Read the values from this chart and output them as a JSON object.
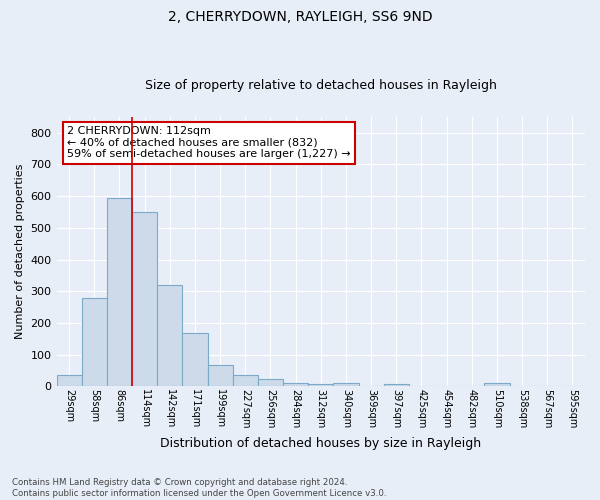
{
  "title1": "2, CHERRYDOWN, RAYLEIGH, SS6 9ND",
  "title2": "Size of property relative to detached houses in Rayleigh",
  "xlabel": "Distribution of detached houses by size in Rayleigh",
  "ylabel": "Number of detached properties",
  "categories": [
    "29sqm",
    "58sqm",
    "86sqm",
    "114sqm",
    "142sqm",
    "171sqm",
    "199sqm",
    "227sqm",
    "256sqm",
    "284sqm",
    "312sqm",
    "340sqm",
    "369sqm",
    "397sqm",
    "425sqm",
    "454sqm",
    "482sqm",
    "510sqm",
    "538sqm",
    "567sqm",
    "595sqm"
  ],
  "values": [
    37,
    280,
    593,
    550,
    320,
    168,
    68,
    37,
    22,
    12,
    8,
    10,
    0,
    8,
    0,
    0,
    0,
    10,
    0,
    0,
    0
  ],
  "bar_color": "#ccdaea",
  "bar_edge_color": "#7aaac8",
  "vline_x_index": 2.5,
  "vline_color": "#cc0000",
  "annotation_text": "2 CHERRYDOWN: 112sqm\n← 40% of detached houses are smaller (832)\n59% of semi-detached houses are larger (1,227) →",
  "annotation_box_color": "white",
  "annotation_box_edge": "#cc0000",
  "background_color": "#e8eef8",
  "grid_color": "white",
  "footer": "Contains HM Land Registry data © Crown copyright and database right 2024.\nContains public sector information licensed under the Open Government Licence v3.0.",
  "ylim": [
    0,
    850
  ],
  "yticks": [
    0,
    100,
    200,
    300,
    400,
    500,
    600,
    700,
    800
  ]
}
